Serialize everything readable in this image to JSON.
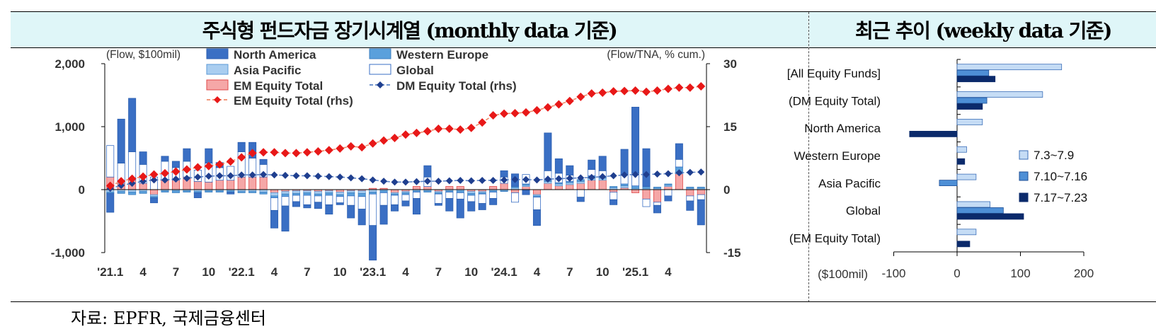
{
  "header": {
    "left_title": "주식형 펀드자금 장기시계열 (monthly data 기준)",
    "right_title": "최근 추이 (weekly data 기준)"
  },
  "source": "자료: EPFR,  국제금융센터",
  "colors": {
    "north_america": "#3a6fc4",
    "western_europe": "#5aa0dc",
    "asia_pacific": "#a9cdf0",
    "global": "#ffffff",
    "global_border": "#3a6fc4",
    "em_equity": "#f5a7a7",
    "em_equity_border": "#e04848",
    "dm_line": "#1f3f8f",
    "em_line": "#e81818",
    "week1": "#c5dcf5",
    "week2": "#4e8fd6",
    "week3": "#0b2a6b"
  },
  "chart_data": [
    {
      "type": "bar",
      "subtype": "stacked bar with dual-axis lines",
      "left_axis_label": "(Flow, $100mil)",
      "right_axis_label": "(Flow/TNA, % cum.)",
      "ylim": [
        -1000,
        2000
      ],
      "yticks": [
        "2,000",
        "1,000",
        "0",
        "-1,000"
      ],
      "y2lim": [
        -15,
        30
      ],
      "y2ticks": [
        "30",
        "15",
        "0",
        "-15"
      ],
      "xtick_labels": [
        {
          "i": 0,
          "label": "'21.1"
        },
        {
          "i": 3,
          "label": "4"
        },
        {
          "i": 6,
          "label": "7"
        },
        {
          "i": 9,
          "label": "10"
        },
        {
          "i": 12,
          "label": "'22.1"
        },
        {
          "i": 15,
          "label": "4"
        },
        {
          "i": 18,
          "label": "7"
        },
        {
          "i": 21,
          "label": "10"
        },
        {
          "i": 24,
          "label": "'23.1"
        },
        {
          "i": 27,
          "label": "4"
        },
        {
          "i": 30,
          "label": "7"
        },
        {
          "i": 33,
          "label": "10"
        },
        {
          "i": 36,
          "label": "'24.1"
        },
        {
          "i": 39,
          "label": "4"
        },
        {
          "i": 42,
          "label": "7"
        },
        {
          "i": 45,
          "label": "10"
        },
        {
          "i": 48,
          "label": "'25.1"
        },
        {
          "i": 51,
          "label": "4"
        }
      ],
      "legend": [
        {
          "key": "north_america",
          "label": "North America",
          "kind": "bar"
        },
        {
          "key": "western_europe",
          "label": "Western Europe",
          "kind": "bar"
        },
        {
          "key": "asia_pacific",
          "label": "Asia Pacific",
          "kind": "bar"
        },
        {
          "key": "global",
          "label": "Global",
          "kind": "bar"
        },
        {
          "key": "em_equity",
          "label": "EM Equity Total",
          "kind": "bar"
        },
        {
          "key": "dm_line",
          "label": "DM Equity Total (rhs)",
          "kind": "line"
        },
        {
          "key": "em_line",
          "label": "EM Equity Total (rhs)",
          "kind": "line"
        }
      ],
      "positive_stack_order": [
        "em_equity",
        "asia_pacific",
        "western_europe",
        "global",
        "north_america"
      ],
      "series": [
        {
          "key": "north_america",
          "name": "North America",
          "values": [
            -300,
            700,
            850,
            200,
            -80,
            80,
            100,
            200,
            -80,
            230,
            80,
            -30,
            150,
            250,
            80,
            -280,
            -400,
            -80,
            -50,
            -100,
            -150,
            -30,
            -200,
            -250,
            -550,
            -300,
            -100,
            -80,
            -250,
            180,
            -30,
            -200,
            -300,
            -150,
            -100,
            -100,
            100,
            200,
            -80,
            -250,
            600,
            230,
            150,
            -70,
            150,
            230,
            -80,
            400,
            1050,
            600,
            -120,
            -80,
            250,
            -150,
            -400
          ]
        },
        {
          "key": "western_europe",
          "name": "Western Europe",
          "values": [
            -20,
            -30,
            -40,
            -30,
            -20,
            -20,
            -30,
            -20,
            -20,
            -20,
            -20,
            -20,
            -20,
            -20,
            -30,
            -30,
            -40,
            -30,
            -40,
            -30,
            -40,
            -30,
            -50,
            -50,
            -30,
            -30,
            -20,
            -30,
            -20,
            -20,
            -20,
            -20,
            -30,
            -30,
            -20,
            -20,
            -10,
            20,
            20,
            -20,
            20,
            20,
            20,
            30,
            40,
            20,
            20,
            30,
            40,
            30,
            20,
            20,
            80,
            20,
            20
          ]
        },
        {
          "key": "asia_pacific",
          "name": "Asia Pacific",
          "values": [
            -40,
            -30,
            -40,
            -30,
            -30,
            -20,
            -20,
            -20,
            -30,
            -20,
            -20,
            -20,
            -30,
            -30,
            -40,
            -50,
            -40,
            -40,
            -30,
            -40,
            -30,
            -40,
            -30,
            -40,
            -40,
            -20,
            -20,
            -20,
            -20,
            -20,
            -20,
            -20,
            -20,
            -30,
            -20,
            -20,
            -20,
            30,
            20,
            -20,
            30,
            30,
            30,
            30,
            30,
            30,
            30,
            30,
            20,
            20,
            20,
            20,
            30,
            20,
            20
          ]
        },
        {
          "key": "global",
          "name": "Global",
          "values": [
            500,
            320,
            450,
            300,
            200,
            300,
            200,
            250,
            180,
            300,
            200,
            220,
            400,
            300,
            200,
            -200,
            -150,
            -100,
            -150,
            -100,
            -150,
            -100,
            -150,
            -200,
            -500,
            -200,
            -150,
            -100,
            -100,
            150,
            -150,
            -100,
            -100,
            -100,
            -150,
            -100,
            100,
            -150,
            150,
            -200,
            150,
            150,
            100,
            -120,
            100,
            100,
            -120,
            150,
            200,
            -120,
            -50,
            -100,
            120,
            -80,
            -80
          ]
        },
        {
          "key": "em_equity",
          "name": "EM Equity Total",
          "values": [
            200,
            100,
            150,
            100,
            -80,
            150,
            150,
            200,
            130,
            120,
            150,
            150,
            200,
            200,
            200,
            -50,
            -30,
            -20,
            -20,
            -30,
            -20,
            -40,
            -20,
            -20,
            20,
            20,
            -50,
            -30,
            50,
            50,
            -30,
            50,
            50,
            -30,
            -30,
            50,
            100,
            -50,
            50,
            -80,
            100,
            60,
            80,
            100,
            150,
            150,
            -40,
            30,
            -50,
            -150,
            -200,
            50,
            250,
            -100,
            -80
          ]
        },
        {
          "key": "dm_line",
          "name": "DM Equity Total (rhs)",
          "axis": "right",
          "values": [
            0.3,
            1.0,
            1.5,
            2.0,
            2.3,
            2.3,
            2.5,
            2.7,
            3.0,
            3.2,
            3.3,
            3.3,
            3.5,
            3.5,
            3.6,
            3.5,
            3.4,
            3.3,
            3.3,
            3.2,
            3.1,
            3.0,
            2.8,
            2.6,
            2.3,
            2.0,
            1.8,
            1.8,
            1.9,
            2.0,
            2.0,
            2.1,
            2.2,
            2.1,
            2.2,
            2.2,
            2.3,
            2.4,
            2.4,
            2.3,
            2.5,
            2.6,
            2.7,
            2.8,
            2.9,
            3.1,
            3.3,
            3.5,
            3.6,
            3.6,
            3.7,
            3.8,
            4.0,
            4.1,
            4.2
          ]
        },
        {
          "key": "em_line",
          "name": "EM Equity Total (rhs)",
          "axis": "right",
          "values": [
            0.9,
            2.0,
            2.6,
            3.1,
            3.6,
            3.9,
            4.3,
            4.8,
            5.3,
            5.6,
            6.0,
            6.7,
            7.7,
            8.7,
            8.9,
            8.9,
            8.7,
            8.7,
            8.9,
            9.1,
            9.4,
            9.8,
            10.3,
            10.1,
            11.0,
            11.7,
            12.3,
            13.1,
            13.5,
            13.9,
            14.5,
            14.5,
            14.3,
            14.7,
            16.0,
            17.7,
            18.1,
            18.2,
            18.4,
            18.9,
            19.6,
            20.3,
            21.1,
            22.1,
            22.9,
            23.1,
            23.4,
            23.5,
            23.6,
            23.3,
            23.6,
            24.0,
            24.3,
            24.3,
            24.6
          ]
        }
      ]
    },
    {
      "type": "bar",
      "subtype": "horizontal grouped bar",
      "xlabel": "($100mil)",
      "xlim": [
        -100,
        200
      ],
      "xticks": [
        -100,
        0,
        100,
        200
      ],
      "categories": [
        "[All Equity Funds]",
        "(DM Equity Total)",
        "North America",
        "Western Europe",
        "Asia Pacific",
        "Global",
        "(EM Equity Total)"
      ],
      "series": [
        {
          "name": "7.3~7.9",
          "values": [
            165,
            135,
            40,
            15,
            30,
            52,
            30
          ]
        },
        {
          "name": "7.10~7.16",
          "values": [
            50,
            47,
            0,
            0,
            -28,
            73,
            0
          ]
        },
        {
          "name": "7.17~7.23",
          "values": [
            60,
            40,
            -75,
            12,
            0,
            105,
            20
          ]
        }
      ]
    }
  ]
}
